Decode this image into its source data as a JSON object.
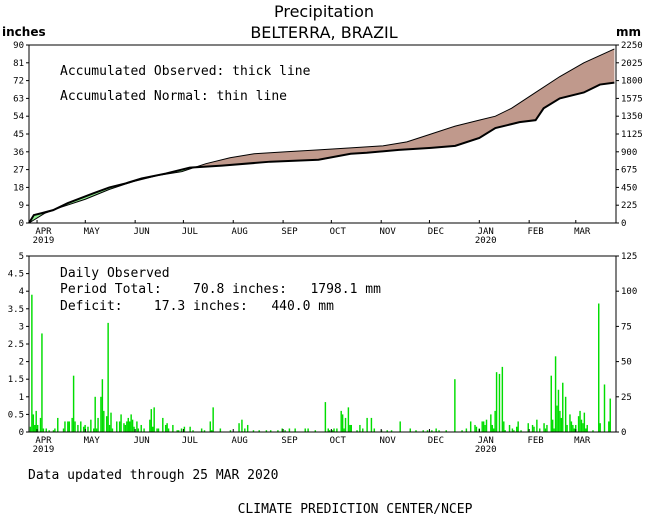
{
  "title": "Precipitation",
  "subtitle": "BELTERRA, BRAZIL",
  "units": {
    "left": "inches",
    "right": "mm"
  },
  "top_panel": {
    "legend_observed": "Accumulated Observed: thick line",
    "legend_normal": "Accumulated Normal: thin line"
  },
  "bottom_panel": {
    "heading": "Daily Observed",
    "period_total": "Period Total:    70.8 inches:   1798.1 mm",
    "deficit": "Deficit:    17.3 inches:   440.0 mm"
  },
  "footer": {
    "updated": "Data updated through 25 MAR 2020",
    "credit": "CLIMATE PREDICTION CENTER/NCEP"
  },
  "colors": {
    "surplus": "#90ee90",
    "deficit": "#c0998c",
    "bar": "#00dd00"
  },
  "chart_data": [
    {
      "type": "area",
      "x_unit": "days since 2019-03-27",
      "x_months": [
        "APR",
        "MAY",
        "JUN",
        "JUL",
        "AUG",
        "SEP",
        "OCT",
        "NOV",
        "DEC",
        "JAN",
        "FEB",
        "MAR"
      ],
      "x_years": [
        "2019",
        "2020"
      ],
      "ylim": [
        0,
        90
      ],
      "yticks": [
        0,
        9,
        18,
        27,
        36,
        45,
        54,
        63,
        72,
        81,
        90
      ],
      "y2ticks": [
        0,
        225,
        450,
        675,
        900,
        1125,
        1350,
        1575,
        1800,
        2025,
        2250
      ],
      "series": [
        {
          "name": "Accumulated Observed",
          "points": [
            [
              0,
              0
            ],
            [
              3,
              4
            ],
            [
              8,
              5
            ],
            [
              15,
              6.5
            ],
            [
              24,
              10
            ],
            [
              40,
              15
            ],
            [
              50,
              18
            ],
            [
              60,
              20
            ],
            [
              70,
              22.5
            ],
            [
              85,
              25
            ],
            [
              100,
              28
            ],
            [
              120,
              29
            ],
            [
              150,
              31
            ],
            [
              180,
              32
            ],
            [
              200,
              35
            ],
            [
              210,
              35.5
            ],
            [
              230,
              37
            ],
            [
              250,
              38
            ],
            [
              265,
              39
            ],
            [
              280,
              43
            ],
            [
              290,
              48
            ],
            [
              300,
              50
            ],
            [
              305,
              51
            ],
            [
              315,
              52
            ],
            [
              320,
              58
            ],
            [
              330,
              63
            ],
            [
              345,
              66
            ],
            [
              355,
              70
            ],
            [
              364,
              71
            ]
          ]
        },
        {
          "name": "Accumulated Normal",
          "points": [
            [
              0,
              0
            ],
            [
              10,
              5
            ],
            [
              20,
              8
            ],
            [
              35,
              12
            ],
            [
              50,
              17
            ],
            [
              65,
              21
            ],
            [
              80,
              24
            ],
            [
              95,
              26
            ],
            [
              110,
              30
            ],
            [
              125,
              33
            ],
            [
              140,
              35
            ],
            [
              160,
              36
            ],
            [
              180,
              37
            ],
            [
              200,
              38
            ],
            [
              220,
              39
            ],
            [
              235,
              41
            ],
            [
              250,
              45
            ],
            [
              265,
              49
            ],
            [
              280,
              52
            ],
            [
              290,
              54
            ],
            [
              300,
              58
            ],
            [
              315,
              66
            ],
            [
              330,
              74
            ],
            [
              345,
              81
            ],
            [
              364,
              88
            ]
          ]
        }
      ]
    },
    {
      "type": "bar",
      "name": "Daily Observed",
      "ylim": [
        0,
        5
      ],
      "yticks": [
        0,
        0.5,
        1,
        1.5,
        2,
        2.5,
        3,
        3.5,
        4,
        4.5,
        5
      ],
      "y2ticks": [
        0,
        25,
        50,
        75,
        100,
        125
      ],
      "values": [
        [
          1,
          0.15
        ],
        [
          2,
          3.9
        ],
        [
          3,
          0.5
        ],
        [
          4,
          0.2
        ],
        [
          5,
          0.6
        ],
        [
          6,
          0.2
        ],
        [
          8,
          0.4
        ],
        [
          9,
          2.8
        ],
        [
          10,
          0.1
        ],
        [
          12,
          0.1
        ],
        [
          14,
          0.05
        ],
        [
          17,
          0.05
        ],
        [
          18,
          0.1
        ],
        [
          20,
          0.4
        ],
        [
          24,
          0.1
        ],
        [
          25,
          0.3
        ],
        [
          27,
          0.3
        ],
        [
          28,
          0.3
        ],
        [
          30,
          0.4
        ],
        [
          31,
          1.6
        ],
        [
          32,
          0.3
        ],
        [
          34,
          0.2
        ],
        [
          36,
          0.3
        ],
        [
          38,
          0.15
        ],
        [
          39,
          0.2
        ],
        [
          41,
          0.15
        ],
        [
          43,
          0.35
        ],
        [
          45,
          0.1
        ],
        [
          46,
          1.0
        ],
        [
          47,
          0.1
        ],
        [
          48,
          0.4
        ],
        [
          50,
          1.0
        ],
        [
          51,
          1.5
        ],
        [
          52,
          0.6
        ],
        [
          54,
          0.45
        ],
        [
          55,
          3.1
        ],
        [
          56,
          0.2
        ],
        [
          57,
          0.55
        ],
        [
          58,
          0.1
        ],
        [
          61,
          0.3
        ],
        [
          63,
          0.3
        ],
        [
          64,
          0.5
        ],
        [
          66,
          0.25
        ],
        [
          67,
          0.2
        ],
        [
          68,
          0.3
        ],
        [
          69,
          0.4
        ],
        [
          70,
          0.3
        ],
        [
          71,
          0.5
        ],
        [
          72,
          0.35
        ],
        [
          73,
          0.15
        ],
        [
          75,
          0.3
        ],
        [
          76,
          0.1
        ],
        [
          78,
          0.2
        ],
        [
          80,
          0.1
        ],
        [
          84,
          0.35
        ],
        [
          85,
          0.65
        ],
        [
          86,
          0.15
        ],
        [
          87,
          0.7
        ],
        [
          89,
          0.1
        ],
        [
          90,
          0.1
        ],
        [
          93,
          0.4
        ],
        [
          95,
          0.2
        ],
        [
          96,
          0.25
        ],
        [
          97,
          0.1
        ],
        [
          100,
          0.2
        ],
        [
          103,
          0.05
        ],
        [
          104,
          0.05
        ],
        [
          106,
          0.1
        ],
        [
          108,
          0.15
        ],
        [
          112,
          0.15
        ],
        [
          114,
          0.05
        ],
        [
          120,
          0.1
        ],
        [
          122,
          0.05
        ],
        [
          126,
          0.3
        ],
        [
          127,
          0.05
        ],
        [
          128,
          0.7
        ],
        [
          133,
          0.1
        ],
        [
          140,
          0.05
        ],
        [
          146,
          0.25
        ],
        [
          148,
          0.35
        ],
        [
          150,
          0.1
        ],
        [
          152,
          0.2
        ],
        [
          156,
          0.05
        ],
        [
          160,
          0.05
        ],
        [
          165,
          0.05
        ],
        [
          168,
          0.05
        ],
        [
          173,
          0.05
        ],
        [
          176,
          0.1
        ],
        [
          178,
          0.05
        ],
        [
          181,
          0.1
        ],
        [
          185,
          0.1
        ],
        [
          192,
          0.1
        ],
        [
          194,
          0.1
        ],
        [
          199,
          0.05
        ],
        [
          206,
          0.85
        ],
        [
          208,
          0.1
        ],
        [
          209,
          0.05
        ],
        [
          211,
          0.05
        ],
        [
          212,
          0.1
        ],
        [
          214,
          0.1
        ],
        [
          217,
          0.6
        ],
        [
          218,
          0.5
        ],
        [
          219,
          0.1
        ],
        [
          220,
          0.4
        ],
        [
          222,
          0.7
        ],
        [
          223,
          0.2
        ],
        [
          224,
          0.2
        ],
        [
          228,
          0.05
        ],
        [
          230,
          0.2
        ],
        [
          232,
          0.1
        ],
        [
          235,
          0.4
        ],
        [
          238,
          0.4
        ],
        [
          240,
          0.1
        ],
        [
          245,
          0.05
        ],
        [
          249,
          0.05
        ],
        [
          252,
          0.05
        ],
        [
          258,
          0.3
        ],
        [
          265,
          0.1
        ],
        [
          269,
          0.05
        ],
        [
          274,
          0.05
        ],
        [
          277,
          0.05
        ],
        [
          280,
          0.05
        ],
        [
          283,
          0.1
        ],
        [
          285,
          0.05
        ],
        [
          290,
          0.05
        ],
        [
          296,
          1.5
        ],
        [
          301,
          0.05
        ],
        [
          304,
          0.1
        ],
        [
          307,
          0.3
        ],
        [
          310,
          0.2
        ],
        [
          311,
          0.15
        ],
        [
          313,
          0.1
        ],
        [
          315,
          0.3
        ],
        [
          316,
          0.3
        ],
        [
          317,
          0.2
        ],
        [
          318,
          0.35
        ],
        [
          321,
          0.5
        ],
        [
          322,
          0.2
        ],
        [
          323,
          0.1
        ],
        [
          324,
          0.6
        ],
        [
          325,
          1.7
        ],
        [
          327,
          1.65
        ],
        [
          329,
          1.85
        ],
        [
          330,
          0.3
        ],
        [
          331,
          0.05
        ],
        [
          334,
          0.2
        ],
        [
          336,
          0.1
        ],
        [
          337,
          0.05
        ],
        [
          339,
          0.15
        ],
        [
          340,
          0.3
        ],
        [
          342,
          0.05
        ],
        [
          347,
          0.25
        ],
        [
          350,
          0.2
        ],
        [
          351,
          0.15
        ],
        [
          353,
          0.35
        ],
        [
          355,
          0.1
        ],
        [
          358,
          0.25
        ],
        [
          359,
          0.1
        ],
        [
          360,
          0.2
        ],
        [
          363,
          1.6
        ],
        [
          364,
          0.35
        ],
        [
          365,
          0.1
        ],
        [
          366,
          2.15
        ],
        [
          367,
          0.75
        ],
        [
          368,
          1.2
        ],
        [
          369,
          0.6
        ],
        [
          370,
          0.4
        ],
        [
          371,
          1.4
        ],
        [
          373,
          1.0
        ],
        [
          374,
          0.2
        ],
        [
          376,
          0.5
        ],
        [
          377,
          0.3
        ],
        [
          378,
          0.2
        ],
        [
          379,
          0.1
        ],
        [
          380,
          0.2
        ],
        [
          382,
          0.45
        ],
        [
          383,
          0.6
        ],
        [
          384,
          0.35
        ],
        [
          385,
          0.25
        ],
        [
          386,
          0.55
        ],
        [
          387,
          0.1
        ],
        [
          388,
          0.2
        ],
        [
          392,
          0.05
        ],
        [
          396,
          3.65
        ],
        [
          397,
          0.25
        ],
        [
          400,
          1.35
        ],
        [
          403,
          0.3
        ],
        [
          404,
          0.95
        ]
      ]
    }
  ]
}
